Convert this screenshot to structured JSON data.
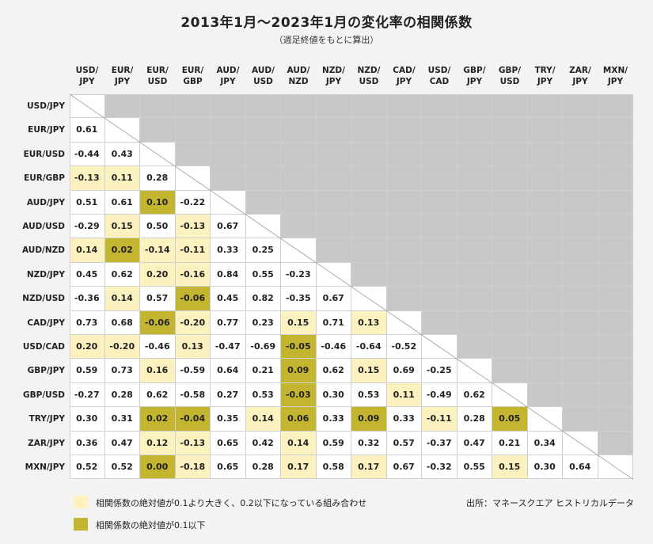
{
  "title": "2013年1月〜2023年1月の変化率の相関係数",
  "subtitle": "（週足終値をもとに算出）",
  "colors": {
    "background": "#f3f3f3",
    "upper_triangle": "#c8c8c8",
    "light_highlight": "#fbf2c0",
    "dark_highlight": "#c4b531",
    "cell": "#ffffff"
  },
  "chart_data": {
    "type": "table",
    "columns": [
      "USD/\nJPY",
      "EUR/\nJPY",
      "EUR/\nUSD",
      "EUR/\nGBP",
      "AUD/\nJPY",
      "AUD/\nUSD",
      "AUD/\nNZD",
      "NZD/\nJPY",
      "NZD/\nUSD",
      "CAD/\nJPY",
      "USD/\nCAD",
      "GBP/\nJPY",
      "GBP/\nUSD",
      "TRY/\nJPY",
      "ZAR/\nJPY",
      "MXN/\nJPY"
    ],
    "rows": [
      "USD/JPY",
      "EUR/JPY",
      "EUR/USD",
      "EUR/GBP",
      "AUD/JPY",
      "AUD/USD",
      "AUD/NZD",
      "NZD/JPY",
      "NZD/USD",
      "CAD/JPY",
      "USD/CAD",
      "GBP/JPY",
      "GBP/USD",
      "TRY/JPY",
      "ZAR/JPY",
      "MXN/JPY"
    ],
    "values": [
      [],
      [
        "0.61"
      ],
      [
        "-0.44",
        "0.43"
      ],
      [
        "-0.13",
        "0.11",
        "0.28"
      ],
      [
        "0.51",
        "0.61",
        "0.10",
        "-0.22"
      ],
      [
        "-0.29",
        "0.15",
        "0.50",
        "-0.13",
        "0.67"
      ],
      [
        "0.14",
        "0.02",
        "-0.14",
        "-0.11",
        "0.33",
        "0.25"
      ],
      [
        "0.45",
        "0.62",
        "0.20",
        "-0.16",
        "0.84",
        "0.55",
        "-0.23"
      ],
      [
        "-0.36",
        "0.14",
        "0.57",
        "-0.06",
        "0.45",
        "0.82",
        "-0.35",
        "0.67"
      ],
      [
        "0.73",
        "0.68",
        "-0.06",
        "-0.20",
        "0.77",
        "0.23",
        "0.15",
        "0.71",
        "0.13"
      ],
      [
        "0.20",
        "-0.20",
        "-0.46",
        "0.13",
        "-0.47",
        "-0.69",
        "-0.05",
        "-0.46",
        "-0.64",
        "-0.52"
      ],
      [
        "0.59",
        "0.73",
        "0.16",
        "-0.59",
        "0.64",
        "0.21",
        "0.09",
        "0.62",
        "0.15",
        "0.69",
        "-0.25"
      ],
      [
        "-0.27",
        "0.28",
        "0.62",
        "-0.58",
        "0.27",
        "0.53",
        "-0.03",
        "0.30",
        "0.53",
        "0.11",
        "-0.49",
        "0.62"
      ],
      [
        "0.30",
        "0.31",
        "0.02",
        "-0.04",
        "0.35",
        "0.14",
        "0.06",
        "0.33",
        "0.09",
        "0.33",
        "-0.11",
        "0.28",
        "0.05"
      ],
      [
        "0.36",
        "0.47",
        "0.12",
        "-0.13",
        "0.65",
        "0.42",
        "0.14",
        "0.59",
        "0.32",
        "0.57",
        "-0.37",
        "0.47",
        "0.21",
        "0.34"
      ],
      [
        "0.52",
        "0.52",
        "0.00",
        "-0.18",
        "0.65",
        "0.28",
        "0.17",
        "0.58",
        "0.17",
        "0.67",
        "-0.32",
        "0.55",
        "0.15",
        "0.30",
        "0.64"
      ]
    ],
    "highlight": {
      "light_note": "0.1 < |r| <= 0.2",
      "dark_note": "|r| <= 0.1"
    }
  },
  "legend": {
    "light_label": "相関係数の絶対値が0.1より大きく、0.2以下になっている組み合わせ",
    "dark_label": "相関係数の絶対値が0.1以下"
  },
  "source": "出所：マネースクエア ヒストリカルデータ"
}
